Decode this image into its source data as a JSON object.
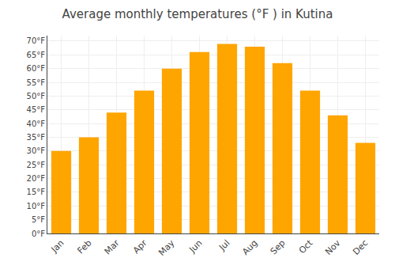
{
  "chart_data": {
    "type": "bar",
    "title": "Average monthly temperatures (°F ) in Kutina",
    "categories": [
      "Jan",
      "Feb",
      "Mar",
      "Apr",
      "May",
      "Jun",
      "Jul",
      "Aug",
      "Sep",
      "Oct",
      "Nov",
      "Dec"
    ],
    "values": [
      30,
      35,
      44,
      52,
      60,
      66,
      69,
      68,
      62,
      52,
      43,
      33
    ],
    "color": "#FFA500",
    "ylim": [
      0,
      72
    ],
    "yticks": [
      {
        "value": 0,
        "label": "0°F"
      },
      {
        "value": 5,
        "label": "5°F"
      },
      {
        "value": 10,
        "label": "10°F"
      },
      {
        "value": 15,
        "label": "15°F"
      },
      {
        "value": 20,
        "label": "20°F"
      },
      {
        "value": 25,
        "label": "25°F"
      },
      {
        "value": 30,
        "label": "30°F"
      },
      {
        "value": 35,
        "label": "35°F"
      },
      {
        "value": 40,
        "label": "40°F"
      },
      {
        "value": 45,
        "label": "45°F"
      },
      {
        "value": 50,
        "label": "50°F"
      },
      {
        "value": 55,
        "label": "55°F"
      },
      {
        "value": 60,
        "label": "60°F"
      },
      {
        "value": 65,
        "label": "65°F"
      },
      {
        "value": 70,
        "label": "70°F"
      }
    ],
    "grid": true
  }
}
